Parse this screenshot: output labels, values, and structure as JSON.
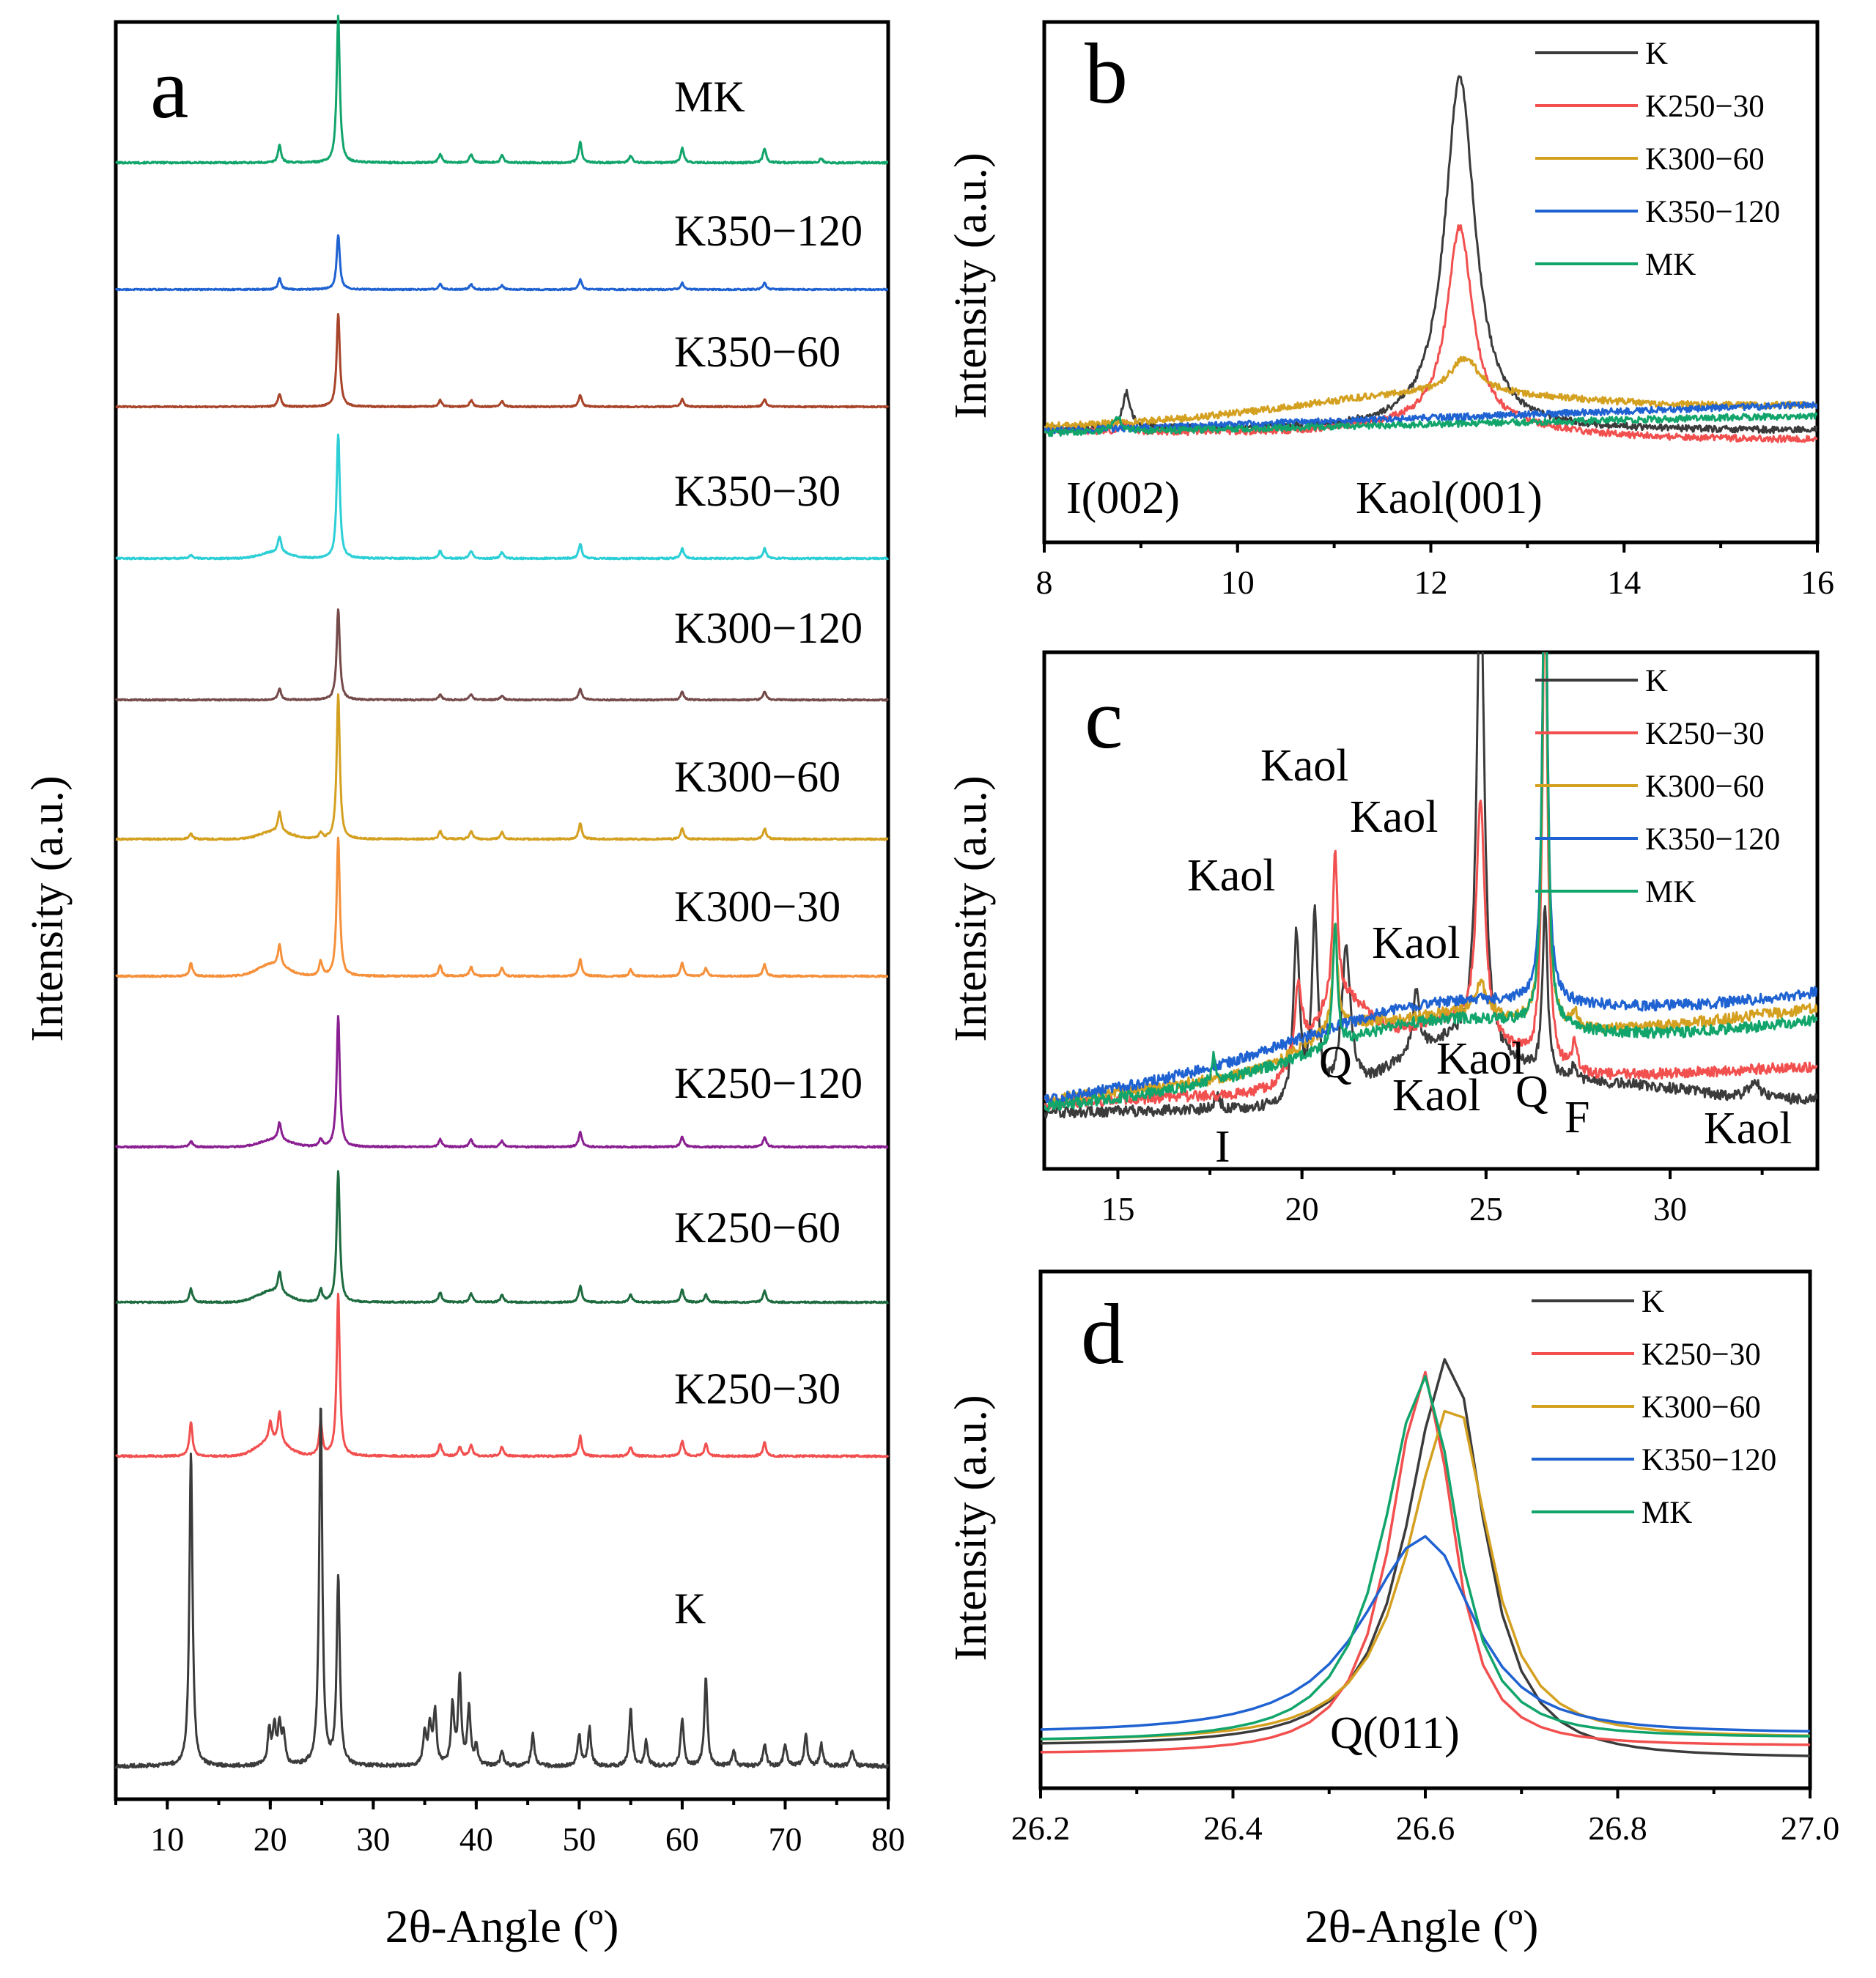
{
  "colors": {
    "K": "#3b3b3b",
    "K250-30": "#f24f4f",
    "K250-60": "#1d6b3f",
    "K250-120": "#8a1f91",
    "K300-30": "#f5903b",
    "K300-60": "#d4a020",
    "K300-120": "#744a4a",
    "K350-30": "#2ccfd6",
    "K350-60": "#a8442a",
    "K350-120": "#1f62d1",
    "MK": "#12a56b"
  },
  "chart_data": [
    {
      "panel": "a",
      "type": "line",
      "letter": "a",
      "xlabel": "2θ-Angle (º)",
      "ylabel": "Intensity (a.u.)",
      "xlim": [
        5,
        80
      ],
      "xticks": [
        "10",
        "20",
        "30",
        "40",
        "50",
        "60",
        "70",
        "80"
      ],
      "layout": "stacked",
      "series": [
        {
          "name": "MK",
          "color_key": "MK",
          "peaks": [
            [
              20.9,
              0.12
            ],
            [
              26.6,
              1.0
            ],
            [
              36.5,
              0.06
            ],
            [
              39.5,
              0.06
            ],
            [
              42.5,
              0.05
            ],
            [
              50.1,
              0.14
            ],
            [
              55.0,
              0.05
            ],
            [
              60.0,
              0.1
            ],
            [
              68.0,
              0.1
            ],
            [
              73.5,
              0.03
            ]
          ],
          "humps": []
        },
        {
          "name": "K350−120",
          "color_key": "K350-120",
          "peaks": [
            [
              20.9,
              0.1
            ],
            [
              26.6,
              0.5
            ],
            [
              36.5,
              0.05
            ],
            [
              39.5,
              0.05
            ],
            [
              42.5,
              0.04
            ],
            [
              50.1,
              0.09
            ],
            [
              60.0,
              0.06
            ],
            [
              68.0,
              0.06
            ]
          ],
          "humps": []
        },
        {
          "name": "K350−60",
          "color_key": "K350-60",
          "peaks": [
            [
              20.9,
              0.12
            ],
            [
              26.6,
              0.85
            ],
            [
              36.5,
              0.06
            ],
            [
              39.5,
              0.06
            ],
            [
              42.5,
              0.05
            ],
            [
              50.1,
              0.11
            ],
            [
              60.0,
              0.07
            ],
            [
              68.0,
              0.07
            ]
          ],
          "humps": []
        },
        {
          "name": "K350−30",
          "color_key": "K350-30",
          "peaks": [
            [
              12.3,
              0.03
            ],
            [
              20.9,
              0.13
            ],
            [
              26.6,
              1.0
            ],
            [
              36.5,
              0.06
            ],
            [
              39.5,
              0.06
            ],
            [
              42.5,
              0.05
            ],
            [
              50.1,
              0.12
            ],
            [
              60.0,
              0.08
            ],
            [
              68.0,
              0.08
            ]
          ],
          "humps": [
            [
              20.5,
              0.05
            ]
          ]
        },
        {
          "name": "K300−120",
          "color_key": "K300-120",
          "peaks": [
            [
              20.9,
              0.1
            ],
            [
              26.6,
              0.8
            ],
            [
              36.5,
              0.05
            ],
            [
              39.5,
              0.05
            ],
            [
              42.5,
              0.04
            ],
            [
              50.1,
              0.1
            ],
            [
              60.0,
              0.07
            ],
            [
              68.0,
              0.07
            ]
          ],
          "humps": []
        },
        {
          "name": "K300−60",
          "color_key": "K300-60",
          "peaks": [
            [
              12.3,
              0.04
            ],
            [
              20.9,
              0.15
            ],
            [
              24.9,
              0.05
            ],
            [
              26.6,
              1.1
            ],
            [
              36.5,
              0.06
            ],
            [
              39.5,
              0.06
            ],
            [
              42.5,
              0.05
            ],
            [
              50.1,
              0.12
            ],
            [
              60.0,
              0.08
            ],
            [
              68.0,
              0.08
            ]
          ],
          "humps": [
            [
              20.5,
              0.06
            ]
          ]
        },
        {
          "name": "K300−30",
          "color_key": "K300-30",
          "peaks": [
            [
              12.3,
              0.1
            ],
            [
              20.9,
              0.16
            ],
            [
              24.9,
              0.11
            ],
            [
              26.6,
              1.05
            ],
            [
              36.5,
              0.08
            ],
            [
              39.5,
              0.07
            ],
            [
              42.5,
              0.06
            ],
            [
              50.1,
              0.13
            ],
            [
              55.0,
              0.05
            ],
            [
              60.0,
              0.1
            ],
            [
              62.3,
              0.06
            ],
            [
              68.0,
              0.09
            ]
          ],
          "humps": [
            [
              20.2,
              0.09
            ]
          ]
        },
        {
          "name": "K250−120",
          "color_key": "K250-120",
          "peaks": [
            [
              12.3,
              0.05
            ],
            [
              20.9,
              0.14
            ],
            [
              24.9,
              0.06
            ],
            [
              26.6,
              1.05
            ],
            [
              36.5,
              0.06
            ],
            [
              39.5,
              0.06
            ],
            [
              42.5,
              0.05
            ],
            [
              50.1,
              0.12
            ],
            [
              60.0,
              0.08
            ],
            [
              68.0,
              0.08
            ]
          ],
          "humps": [
            [
              20.5,
              0.06
            ]
          ]
        },
        {
          "name": "K250−60",
          "color_key": "K250-60",
          "peaks": [
            [
              12.3,
              0.11
            ],
            [
              20.9,
              0.17
            ],
            [
              24.9,
              0.1
            ],
            [
              26.6,
              1.05
            ],
            [
              36.5,
              0.08
            ],
            [
              39.5,
              0.07
            ],
            [
              42.5,
              0.06
            ],
            [
              50.1,
              0.13
            ],
            [
              55.0,
              0.06
            ],
            [
              60.0,
              0.1
            ],
            [
              62.3,
              0.06
            ],
            [
              68.0,
              0.09
            ]
          ],
          "humps": [
            [
              20.2,
              0.09
            ]
          ]
        },
        {
          "name": "K250−30",
          "color_key": "K250-30",
          "peaks": [
            [
              12.3,
              0.22
            ],
            [
              20.0,
              0.12
            ],
            [
              20.9,
              0.2
            ],
            [
              24.9,
              0.22
            ],
            [
              26.6,
              1.05
            ],
            [
              36.5,
              0.08
            ],
            [
              38.4,
              0.06
            ],
            [
              39.5,
              0.07
            ],
            [
              42.5,
              0.06
            ],
            [
              50.1,
              0.13
            ],
            [
              55.0,
              0.06
            ],
            [
              60.0,
              0.1
            ],
            [
              62.3,
              0.08
            ],
            [
              68.0,
              0.09
            ]
          ],
          "humps": [
            [
              20.2,
              0.1
            ]
          ]
        },
        {
          "name": "K",
          "color_key": "K",
          "peaks": [
            [
              12.3,
              1.0
            ],
            [
              19.9,
              0.11
            ],
            [
              20.4,
              0.12
            ],
            [
              20.9,
              0.12
            ],
            [
              21.3,
              0.09
            ],
            [
              24.9,
              1.15
            ],
            [
              26.6,
              0.6
            ],
            [
              35.0,
              0.1
            ],
            [
              35.5,
              0.12
            ],
            [
              36.0,
              0.17
            ],
            [
              37.7,
              0.19
            ],
            [
              38.4,
              0.28
            ],
            [
              39.3,
              0.18
            ],
            [
              40.0,
              0.06
            ],
            [
              42.5,
              0.05
            ],
            [
              45.5,
              0.1
            ],
            [
              50.0,
              0.1
            ],
            [
              51.0,
              0.12
            ],
            [
              55.0,
              0.18
            ],
            [
              56.5,
              0.08
            ],
            [
              60.0,
              0.15
            ],
            [
              62.3,
              0.28
            ],
            [
              65.0,
              0.05
            ],
            [
              68.0,
              0.07
            ],
            [
              70.0,
              0.07
            ],
            [
              72.0,
              0.1
            ],
            [
              73.5,
              0.07
            ],
            [
              76.5,
              0.05
            ]
          ],
          "humps": []
        }
      ]
    },
    {
      "panel": "b",
      "type": "line",
      "letter": "b",
      "xlabel": "",
      "ylabel": "Intensity (a.u.)",
      "xlim": [
        8,
        16
      ],
      "xticks": [
        "8",
        "10",
        "12",
        "14",
        "16"
      ],
      "annotations": [
        "I(002)",
        "Kaol(001)"
      ],
      "series": [
        {
          "name": "K",
          "color_key": "K",
          "base": [
            0.05,
            -0.01
          ],
          "peaks": [
            [
              8.85,
              0.16,
              0.05
            ],
            [
              12.3,
              1.6,
              0.19
            ]
          ],
          "humps": []
        },
        {
          "name": "K250−30",
          "color_key": "K250-30",
          "base": [
            0.04,
            -0.04
          ],
          "peaks": [
            [
              8.85,
              0.04,
              0.05
            ],
            [
              12.3,
              0.9,
              0.16
            ]
          ],
          "humps": [
            [
              12.2,
              0.05,
              0.9
            ]
          ]
        },
        {
          "name": "K300−60",
          "color_key": "K300-60",
          "base": [
            0.06,
            0.1
          ],
          "peaks": [
            [
              12.35,
              0.16,
              0.18
            ]
          ],
          "humps": [
            [
              12.0,
              0.1,
              1.4
            ]
          ]
        },
        {
          "name": "K350−120",
          "color_key": "K350-120",
          "base": [
            0.04,
            0.12
          ],
          "peaks": [],
          "humps": []
        },
        {
          "name": "MK",
          "color_key": "MK",
          "base": [
            0.03,
            0.08
          ],
          "peaks": [
            [
              8.75,
              0.07,
              0.05
            ]
          ],
          "humps": []
        }
      ]
    },
    {
      "panel": "c",
      "type": "line",
      "letter": "c",
      "xlabel": "",
      "ylabel": "Intensity (a.u.)",
      "xlim": [
        13,
        34
      ],
      "xticks": [
        "15",
        "20",
        "25",
        "30"
      ],
      "annotations": [
        "Kaol",
        "Kaol",
        "Kaol",
        "Kaol",
        "Q",
        "Kaol",
        "Kaol",
        "Q",
        "F",
        "Kaol",
        "I"
      ],
      "series": [
        {
          "name": "K",
          "color_key": "K",
          "base": [
            0.04,
            0.04
          ],
          "peaks": [
            [
              17.7,
              0.05,
              0.08
            ],
            [
              19.85,
              0.55,
              0.1
            ],
            [
              20.35,
              0.6,
              0.1
            ],
            [
              21.2,
              0.46,
              0.15
            ],
            [
              23.1,
              0.2,
              0.1
            ],
            [
              24.85,
              1.6,
              0.12
            ],
            [
              26.6,
              0.55,
              0.08
            ],
            [
              27.4,
              0.05,
              0.1
            ],
            [
              32.3,
              0.05,
              0.2
            ]
          ],
          "humps": [
            [
              24.0,
              0.2,
              1.6
            ],
            [
              28.5,
              0.06,
              2.0
            ]
          ]
        },
        {
          "name": "K250−30",
          "color_key": "K250-30",
          "base": [
            0.07,
            0.12
          ],
          "peaks": [
            [
              19.9,
              0.25,
              0.12
            ],
            [
              20.9,
              0.48,
              0.08
            ],
            [
              24.85,
              0.75,
              0.14
            ],
            [
              26.6,
              1.6,
              0.08
            ],
            [
              27.4,
              0.09,
              0.08
            ]
          ],
          "humps": [
            [
              21.0,
              0.25,
              0.8
            ],
            [
              23.8,
              0.2,
              1.6
            ]
          ]
        },
        {
          "name": "K300−60",
          "color_key": "K300-60",
          "base": [
            0.08,
            0.3
          ],
          "peaks": [
            [
              20.9,
              0.35,
              0.08
            ],
            [
              24.85,
              0.1,
              0.2
            ],
            [
              26.6,
              1.6,
              0.08
            ],
            [
              27.4,
              0.05,
              0.08
            ]
          ],
          "humps": [
            [
              21.0,
              0.08,
              1.2
            ],
            [
              24.0,
              0.12,
              2.0
            ]
          ]
        },
        {
          "name": "K350−120",
          "color_key": "K350-120",
          "base": [
            0.08,
            0.35
          ],
          "peaks": [
            [
              26.6,
              1.6,
              0.08
            ]
          ],
          "humps": [
            [
              23.5,
              0.14,
              3.5
            ]
          ]
        },
        {
          "name": "MK",
          "color_key": "MK",
          "base": [
            0.06,
            0.28
          ],
          "peaks": [
            [
              17.6,
              0.08,
              0.06
            ],
            [
              20.9,
              0.4,
              0.07
            ],
            [
              26.6,
              1.7,
              0.08
            ]
          ],
          "humps": [
            [
              23.5,
              0.14,
              3.0
            ]
          ]
        }
      ]
    },
    {
      "panel": "d",
      "type": "line",
      "letter": "d",
      "xlabel": "2θ-Angle (º)",
      "ylabel": "Intensity (a.u.)",
      "xlim": [
        26.2,
        27.0
      ],
      "xticks": [
        "26.2",
        "26.4",
        "26.6",
        "26.8",
        "27.0"
      ],
      "annotations": [
        "Q(011)"
      ],
      "series": [
        {
          "name": "K",
          "color_key": "K",
          "base": 0.05,
          "end": 0.02,
          "peak_x": 26.625,
          "peak_y": 1.0,
          "wl": 0.06,
          "wr": 0.05
        },
        {
          "name": "K250−30",
          "color_key": "K250-30",
          "base": 0.03,
          "end": 0.05,
          "peak_x": 26.6,
          "peak_y": 0.96,
          "wl": 0.05,
          "wr": 0.04
        },
        {
          "name": "K300−60",
          "color_key": "K300-60",
          "base": 0.06,
          "end": 0.07,
          "peak_x": 26.63,
          "peak_y": 0.89,
          "wl": 0.065,
          "wr": 0.05
        },
        {
          "name": "K350−120",
          "color_key": "K350-120",
          "base": 0.08,
          "end": 0.08,
          "peak_x": 26.6,
          "peak_y": 0.56,
          "wl": 0.09,
          "wr": 0.07
        },
        {
          "name": "MK",
          "color_key": "MK",
          "base": 0.06,
          "end": 0.07,
          "peak_x": 26.6,
          "peak_y": 0.95,
          "wl": 0.06,
          "wr": 0.045
        }
      ]
    }
  ]
}
